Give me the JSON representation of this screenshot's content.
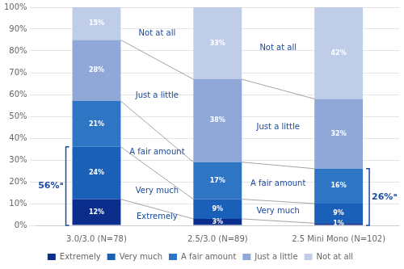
{
  "chart_data": {
    "type": "bar",
    "stacked": true,
    "categories": [
      "3.0/3.0 (N=78)",
      "2.5/3.0 (N=89)",
      "2.5 Mini Mono (N=102)"
    ],
    "series": [
      {
        "name": "Extremely",
        "color": "#0b2d8c",
        "values": [
          12,
          3,
          1
        ],
        "value_labels": [
          "12%",
          "3%",
          "1%"
        ]
      },
      {
        "name": "Very much",
        "color": "#1a5fb8",
        "values": [
          24,
          9,
          9
        ],
        "value_labels": [
          "24%",
          "9%",
          "9%"
        ]
      },
      {
        "name": "A fair amount",
        "color": "#2e75c3",
        "values": [
          21,
          17,
          16
        ],
        "value_labels": [
          "21%",
          "17%",
          "16%"
        ]
      },
      {
        "name": "Just a little",
        "color": "#8fa8d8",
        "values": [
          28,
          38,
          32
        ],
        "value_labels": [
          "28%",
          "38%",
          "32%"
        ]
      },
      {
        "name": "Not at all",
        "color": "#bfcde8",
        "values": [
          15,
          33,
          42
        ],
        "value_labels": [
          "15%",
          "33%",
          "42%"
        ]
      }
    ],
    "ylim": [
      0,
      100
    ],
    "yticks": [
      {
        "value": 0,
        "label": "0%"
      },
      {
        "value": 10,
        "label": "10%"
      },
      {
        "value": 20,
        "label": "20%"
      },
      {
        "value": 30,
        "label": "30%"
      },
      {
        "value": 40,
        "label": "40%"
      },
      {
        "value": 50,
        "label": "50%"
      },
      {
        "value": 60,
        "label": "60%"
      },
      {
        "value": 70,
        "label": "70%"
      },
      {
        "value": 80,
        "label": "80%"
      },
      {
        "value": 90,
        "label": "90%"
      },
      {
        "value": 100,
        "label": "100%"
      }
    ],
    "grid": true,
    "legend": "bottom",
    "data_labels": true,
    "annotations": [
      {
        "text": "Extremely",
        "color": "#1a4ba0"
      },
      {
        "text": "Very much",
        "color": "#1a4ba0"
      },
      {
        "text": "A fair amount",
        "color": "#1a4ba0"
      },
      {
        "text": "Just a little",
        "color": "#1a4ba0"
      },
      {
        "text": "Not at all",
        "color": "#1a4ba0"
      },
      {
        "text": "Very much",
        "color": "#1a4ba0"
      },
      {
        "text": "A fair amount",
        "color": "#1a4ba0"
      },
      {
        "text": "Just a little",
        "color": "#1a4ba0"
      },
      {
        "text": "Not at all",
        "color": "#1a4ba0"
      }
    ],
    "brackets": [
      {
        "text": "56%ᵃ",
        "span": [
          0,
          36
        ],
        "color": "#1a4ba0"
      },
      {
        "text": "26%ᵃ",
        "span": [
          0,
          26
        ],
        "color": "#1a4ba0"
      }
    ]
  }
}
